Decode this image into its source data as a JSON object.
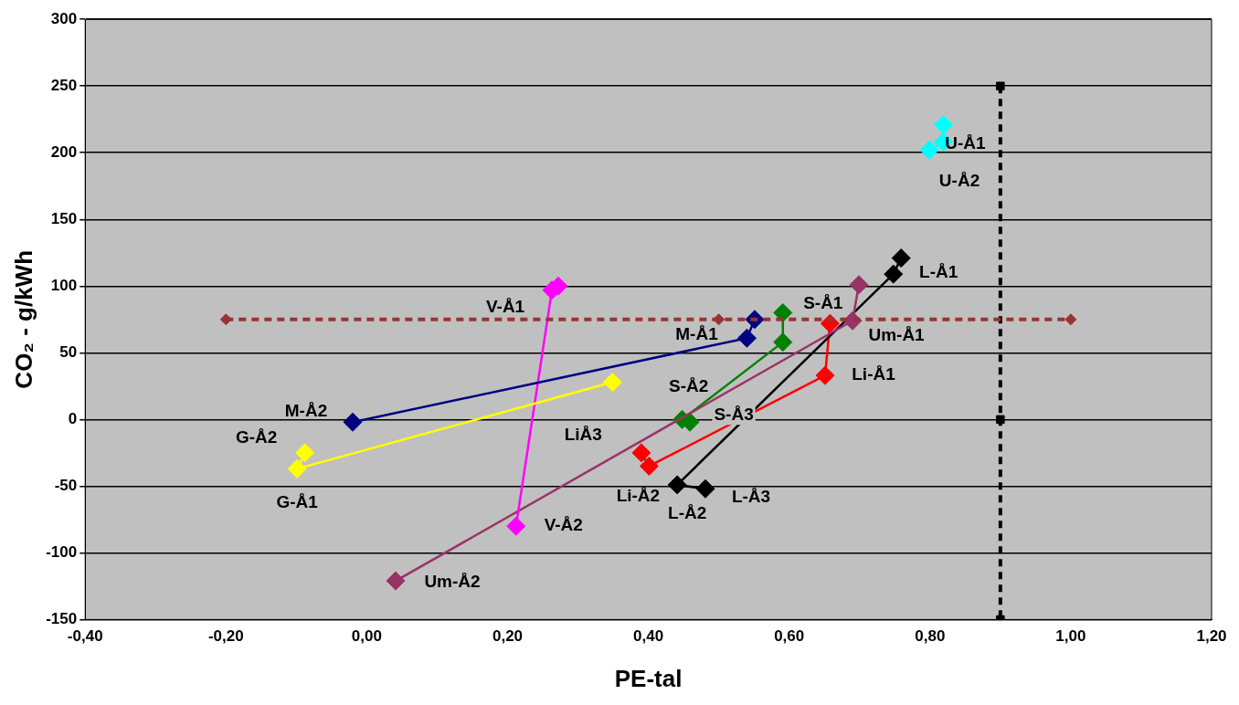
{
  "chart_data": {
    "type": "line",
    "xlabel": "PE-tal",
    "ylabel": "CO₂ - g/kWh",
    "xlim": [
      -0.4,
      1.2
    ],
    "ylim": [
      -150,
      300
    ],
    "xticks": [
      {
        "value": -0.4,
        "label": "-0,40"
      },
      {
        "value": -0.2,
        "label": "-0,20"
      },
      {
        "value": 0,
        "label": "0,00"
      },
      {
        "value": 0.2,
        "label": "0,20"
      },
      {
        "value": 0.4,
        "label": "0,40"
      },
      {
        "value": 0.6,
        "label": "0,60"
      },
      {
        "value": 0.8,
        "label": "0,80"
      },
      {
        "value": 1,
        "label": "1,00"
      },
      {
        "value": 1.2,
        "label": "1,20"
      }
    ],
    "yticks": [
      -150,
      -100,
      -50,
      0,
      50,
      100,
      150,
      200,
      250,
      300
    ],
    "grid": "y",
    "legend": false,
    "marker": "diamond",
    "line_style": "solid",
    "series": [
      {
        "color": "#993333",
        "x": [
          -0.2,
          0.5,
          1.0
        ],
        "values": [
          75,
          75,
          75
        ],
        "line_style": "dashed",
        "marker": "diamond"
      },
      {
        "color": "#000000",
        "x": [
          0.9,
          0.9,
          0.9
        ],
        "values": [
          250,
          0,
          -150
        ],
        "line_style": "dashed",
        "marker": "square"
      },
      {
        "color": "#000080",
        "x": [
          -0.02,
          0.54,
          0.551
        ],
        "values": [
          -2,
          61,
          75
        ]
      },
      {
        "color": "#ffff00",
        "x": [
          -0.088,
          -0.099,
          0.349
        ],
        "values": [
          -25,
          -37,
          28
        ]
      },
      {
        "color": "#ff00ff",
        "x": [
          0.212,
          0.263,
          0.272
        ],
        "values": [
          -80,
          97,
          100
        ]
      },
      {
        "color": "#993366",
        "x": [
          0.041,
          0.69,
          0.699
        ],
        "values": [
          -121,
          74,
          101
        ]
      },
      {
        "color": "#000000",
        "x": [
          0.481,
          0.441,
          0.748,
          0.759
        ],
        "values": [
          -52,
          -49,
          109,
          121
        ]
      },
      {
        "color": "#008000",
        "x": [
          0.459,
          0.448,
          0.591,
          0.591
        ],
        "values": [
          -2,
          0,
          58,
          80
        ]
      },
      {
        "color": "#ff0000",
        "x": [
          0.39,
          0.401,
          0.651,
          0.658
        ],
        "values": [
          -25,
          -35,
          33,
          72
        ]
      },
      {
        "color": "#00ffff",
        "x": [
          0.799,
          0.819,
          0.819
        ],
        "values": [
          202,
          208,
          221
        ]
      }
    ],
    "annotations": [
      {
        "text": "U-Å1",
        "x": 0.819,
        "y": 208
      },
      {
        "text": "U-Å2",
        "x": 0.799,
        "y": 202
      },
      {
        "text": "L-Å1",
        "x": 0.759,
        "y": 121
      },
      {
        "text": "S-Å1",
        "x": 0.591,
        "y": 80
      },
      {
        "text": "Um-Å1",
        "x": 0.69,
        "y": 74
      },
      {
        "text": "M-Å1",
        "x": 0.54,
        "y": 61
      },
      {
        "text": "V-Å1",
        "x": 0.263,
        "y": 97
      },
      {
        "text": "Li-Å1",
        "x": 0.651,
        "y": 33
      },
      {
        "text": "S-Å2",
        "x": 0.448,
        "y": 0
      },
      {
        "text": "S-Å3",
        "x": 0.459,
        "y": -2
      },
      {
        "text": "M-Å2",
        "x": -0.02,
        "y": -2
      },
      {
        "text": "G-Å2",
        "x": -0.088,
        "y": -25
      },
      {
        "text": "LiÅ3",
        "x": 0.349,
        "y": 28
      },
      {
        "text": "G-Å1",
        "x": -0.099,
        "y": -37
      },
      {
        "text": "Li-Å2",
        "x": 0.401,
        "y": -35
      },
      {
        "text": "L-Å3",
        "x": 0.481,
        "y": -52
      },
      {
        "text": "L-Å2",
        "x": 0.441,
        "y": -49
      },
      {
        "text": "V-Å2",
        "x": 0.212,
        "y": -80
      },
      {
        "text": "Um-Å2",
        "x": 0.041,
        "y": -121
      }
    ]
  }
}
